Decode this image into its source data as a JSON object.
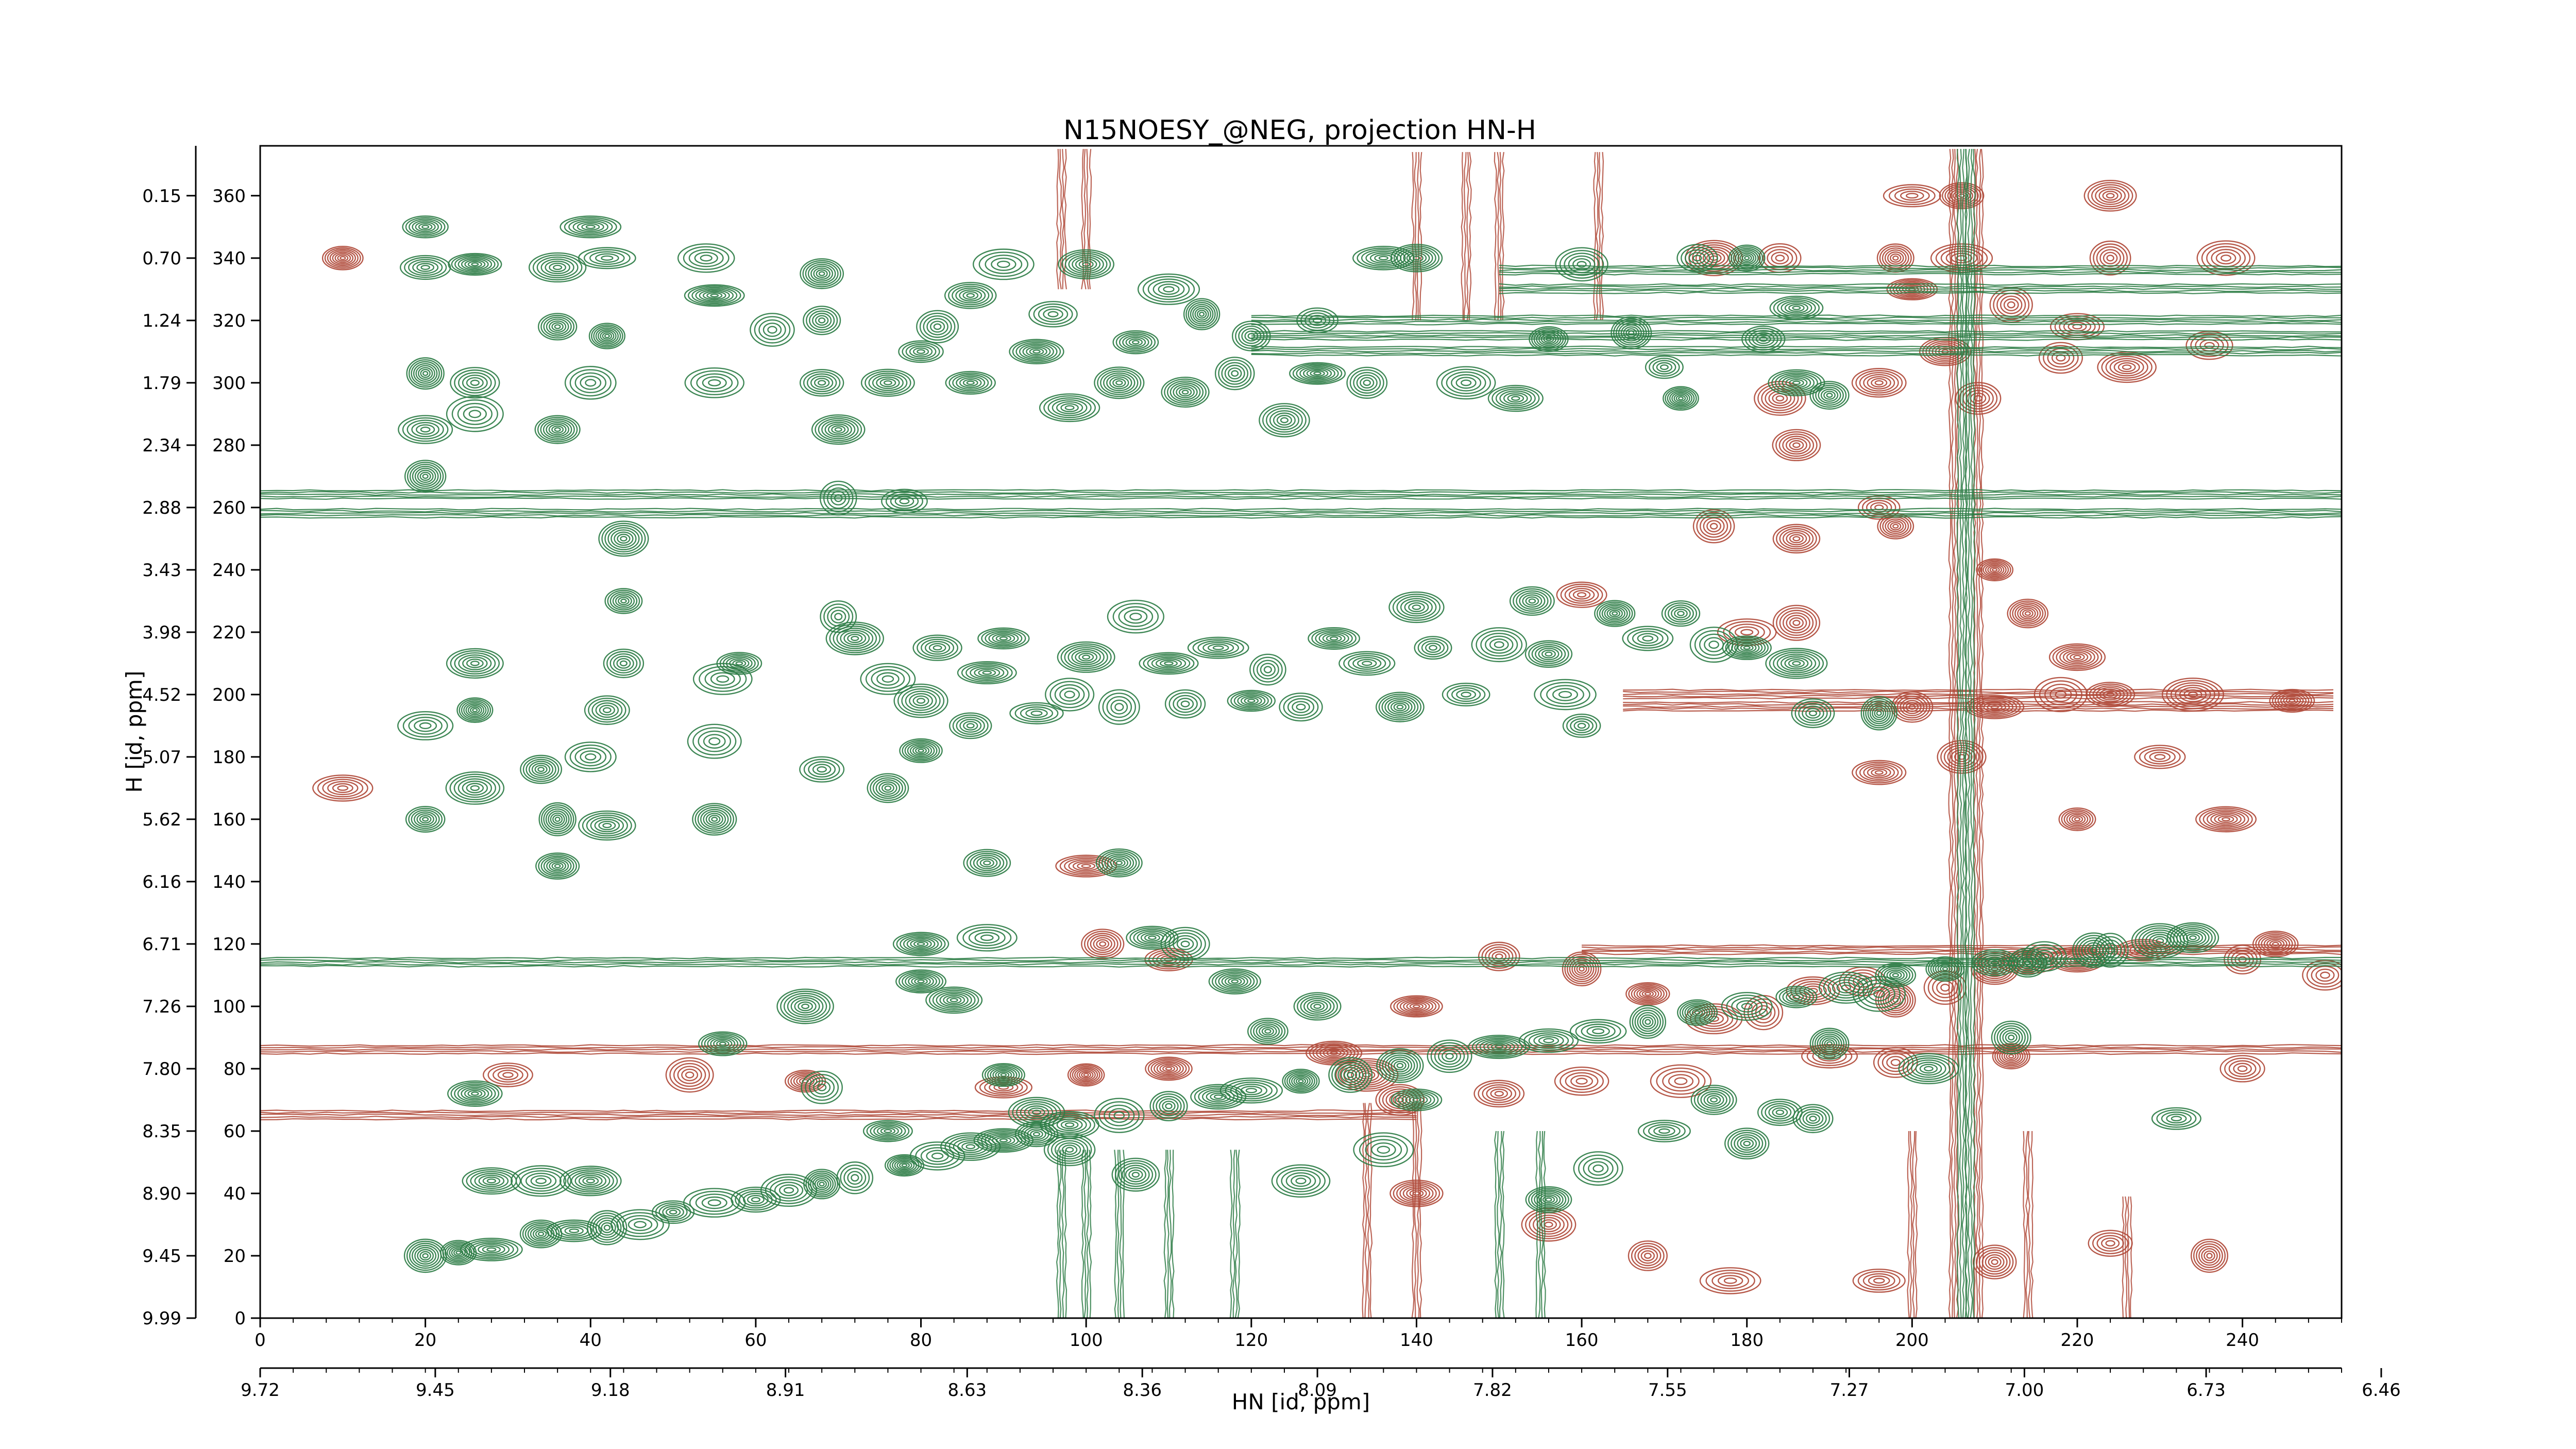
{
  "chart_data": {
    "type": "contour",
    "title": "N15NOESY_@NEG, projection HN-H",
    "xlabel": "HN [id, ppm]",
    "ylabel": "H [id, ppm]",
    "xlim": [
      0,
      252
    ],
    "ylim": [
      0,
      376
    ],
    "grid": false,
    "colors": {
      "positive": "#2e7d46",
      "negative": "#b04a3a"
    },
    "x_points": {
      "ticks": [
        0,
        20,
        40,
        60,
        80,
        100,
        120,
        140,
        160,
        180,
        200,
        220,
        240
      ],
      "labels": [
        "0",
        "20",
        "40",
        "60",
        "80",
        "100",
        "120",
        "140",
        "160",
        "180",
        "200",
        "220",
        "240"
      ]
    },
    "x_ppm": {
      "ticks": [
        0,
        21.2,
        42.4,
        63.6,
        85.6,
        106.8,
        128,
        149.2,
        170.4,
        192.4,
        213.6,
        235.6,
        256.8
      ],
      "labels": [
        "9.72",
        "9.45",
        "9.18",
        "8.91",
        "8.63",
        "8.36",
        "8.09",
        "7.82",
        "7.55",
        "7.27",
        "7.00",
        "6.73",
        "6.46"
      ]
    },
    "y_points": {
      "ticks": [
        0,
        20,
        40,
        60,
        80,
        100,
        120,
        140,
        160,
        180,
        200,
        220,
        240,
        260,
        280,
        300,
        320,
        340,
        360
      ],
      "labels": [
        "0",
        "20",
        "40",
        "60",
        "80",
        "100",
        "120",
        "140",
        "160",
        "180",
        "200",
        "220",
        "240",
        "260",
        "280",
        "300",
        "320",
        "340",
        "360"
      ]
    },
    "y_ppm": {
      "ticks": [
        0,
        20,
        40,
        60,
        80,
        100,
        120,
        140,
        160,
        180,
        200,
        220,
        240,
        260,
        280,
        300,
        320,
        340,
        360
      ],
      "labels": [
        "9.99",
        "9.45",
        "8.90",
        "8.35",
        "7.80",
        "7.26",
        "6.71",
        "6.16",
        "5.62",
        "5.07",
        "4.52",
        "3.98",
        "3.43",
        "2.88",
        "2.34",
        "1.79",
        "1.24",
        "0.70",
        "0.15"
      ]
    },
    "positive_peaks": [
      [
        20,
        20
      ],
      [
        24,
        21
      ],
      [
        28,
        22
      ],
      [
        34,
        27
      ],
      [
        38,
        28
      ],
      [
        42,
        29
      ],
      [
        46,
        30
      ],
      [
        50,
        34
      ],
      [
        55,
        37
      ],
      [
        60,
        38
      ],
      [
        64,
        41
      ],
      [
        68,
        43
      ],
      [
        72,
        45
      ],
      [
        78,
        49
      ],
      [
        82,
        52
      ],
      [
        86,
        55
      ],
      [
        90,
        57
      ],
      [
        94,
        59
      ],
      [
        98,
        62
      ],
      [
        104,
        65
      ],
      [
        110,
        68
      ],
      [
        116,
        71
      ],
      [
        120,
        73
      ],
      [
        126,
        76
      ],
      [
        132,
        78
      ],
      [
        138,
        81
      ],
      [
        144,
        84
      ],
      [
        150,
        87
      ],
      [
        156,
        89
      ],
      [
        162,
        92
      ],
      [
        168,
        95
      ],
      [
        174,
        98
      ],
      [
        180,
        100
      ],
      [
        186,
        103
      ],
      [
        192,
        106
      ],
      [
        198,
        110
      ],
      [
        204,
        112
      ],
      [
        210,
        114
      ],
      [
        216,
        116
      ],
      [
        222,
        118
      ],
      [
        230,
        121
      ],
      [
        20,
        160
      ],
      [
        26,
        170
      ],
      [
        20,
        190
      ],
      [
        26,
        195
      ],
      [
        40,
        180
      ],
      [
        36,
        160
      ],
      [
        42,
        158
      ],
      [
        36,
        145
      ],
      [
        55,
        160
      ],
      [
        55,
        185
      ],
      [
        56,
        205
      ],
      [
        44,
        210
      ],
      [
        42,
        195
      ],
      [
        26,
        210
      ],
      [
        20,
        270
      ],
      [
        20,
        285
      ],
      [
        26,
        290
      ],
      [
        26,
        300
      ],
      [
        20,
        303
      ],
      [
        26,
        338
      ],
      [
        20,
        337
      ],
      [
        36,
        337
      ],
      [
        42,
        340
      ],
      [
        40,
        350
      ],
      [
        20,
        350
      ],
      [
        36,
        318
      ],
      [
        42,
        315
      ],
      [
        40,
        300
      ],
      [
        36,
        285
      ],
      [
        44,
        250
      ],
      [
        44,
        230
      ],
      [
        55,
        328
      ],
      [
        54,
        340
      ],
      [
        55,
        300
      ],
      [
        62,
        317
      ],
      [
        68,
        300
      ],
      [
        68,
        320
      ],
      [
        70,
        285
      ],
      [
        68,
        335
      ],
      [
        70,
        263
      ],
      [
        76,
        300
      ],
      [
        78,
        262
      ],
      [
        80,
        310
      ],
      [
        82,
        318
      ],
      [
        86,
        328
      ],
      [
        86,
        300
      ],
      [
        90,
        338
      ],
      [
        94,
        310
      ],
      [
        96,
        322
      ],
      [
        98,
        292
      ],
      [
        100,
        338
      ],
      [
        104,
        300
      ],
      [
        106,
        313
      ],
      [
        110,
        330
      ],
      [
        112,
        297
      ],
      [
        114,
        322
      ],
      [
        118,
        303
      ],
      [
        120,
        315
      ],
      [
        124,
        288
      ],
      [
        128,
        320
      ],
      [
        128,
        303
      ],
      [
        134,
        300
      ],
      [
        136,
        340
      ],
      [
        140,
        340
      ],
      [
        146,
        300
      ],
      [
        152,
        295
      ],
      [
        156,
        314
      ],
      [
        160,
        338
      ],
      [
        166,
        316
      ],
      [
        170,
        305
      ],
      [
        172,
        295
      ],
      [
        174,
        340
      ],
      [
        180,
        340
      ],
      [
        182,
        314
      ],
      [
        186,
        300
      ],
      [
        190,
        296
      ],
      [
        186,
        324
      ],
      [
        70,
        225
      ],
      [
        72,
        218
      ],
      [
        76,
        205
      ],
      [
        80,
        198
      ],
      [
        82,
        215
      ],
      [
        86,
        190
      ],
      [
        88,
        207
      ],
      [
        90,
        218
      ],
      [
        94,
        194
      ],
      [
        98,
        200
      ],
      [
        100,
        212
      ],
      [
        104,
        196
      ],
      [
        106,
        225
      ],
      [
        110,
        210
      ],
      [
        112,
        197
      ],
      [
        116,
        215
      ],
      [
        120,
        198
      ],
      [
        122,
        208
      ],
      [
        126,
        196
      ],
      [
        130,
        218
      ],
      [
        134,
        210
      ],
      [
        138,
        196
      ],
      [
        140,
        228
      ],
      [
        142,
        215
      ],
      [
        146,
        200
      ],
      [
        150,
        216
      ],
      [
        154,
        230
      ],
      [
        156,
        213
      ],
      [
        158,
        200
      ],
      [
        160,
        190
      ],
      [
        164,
        226
      ],
      [
        168,
        218
      ],
      [
        172,
        226
      ],
      [
        176,
        216
      ],
      [
        180,
        215
      ],
      [
        186,
        210
      ],
      [
        188,
        194
      ],
      [
        196,
        194
      ],
      [
        56,
        88
      ],
      [
        66,
        100
      ],
      [
        68,
        74
      ],
      [
        76,
        60
      ],
      [
        80,
        108
      ],
      [
        80,
        120
      ],
      [
        84,
        102
      ],
      [
        90,
        78
      ],
      [
        94,
        66
      ],
      [
        98,
        54
      ],
      [
        106,
        46
      ],
      [
        108,
        122
      ],
      [
        112,
        120
      ],
      [
        118,
        108
      ],
      [
        122,
        92
      ],
      [
        126,
        44
      ],
      [
        128,
        100
      ],
      [
        136,
        54
      ],
      [
        140,
        70
      ],
      [
        156,
        38
      ],
      [
        162,
        48
      ],
      [
        170,
        60
      ],
      [
        176,
        70
      ],
      [
        180,
        56
      ],
      [
        184,
        66
      ],
      [
        188,
        64
      ],
      [
        190,
        88
      ],
      [
        196,
        104
      ],
      [
        202,
        80
      ],
      [
        212,
        90
      ],
      [
        214,
        114
      ],
      [
        224,
        118
      ],
      [
        232,
        64
      ],
      [
        234,
        122
      ],
      [
        26,
        72
      ],
      [
        28,
        44
      ],
      [
        34,
        44
      ],
      [
        40,
        44
      ],
      [
        88,
        146
      ],
      [
        88,
        122
      ],
      [
        104,
        146
      ],
      [
        76,
        170
      ],
      [
        80,
        182
      ],
      [
        68,
        176
      ],
      [
        34,
        176
      ],
      [
        58,
        210
      ]
    ],
    "negative_peaks": [
      [
        182,
        98
      ],
      [
        188,
        105
      ],
      [
        194,
        108
      ],
      [
        198,
        102
      ],
      [
        204,
        106
      ],
      [
        210,
        112
      ],
      [
        214,
        114
      ],
      [
        220,
        115
      ],
      [
        228,
        118
      ],
      [
        240,
        115
      ],
      [
        176,
        96
      ],
      [
        168,
        104
      ],
      [
        160,
        112
      ],
      [
        150,
        116
      ],
      [
        140,
        100
      ],
      [
        134,
        78
      ],
      [
        138,
        70
      ],
      [
        150,
        72
      ],
      [
        160,
        76
      ],
      [
        172,
        76
      ],
      [
        190,
        84
      ],
      [
        198,
        82
      ],
      [
        212,
        84
      ],
      [
        176,
        340
      ],
      [
        184,
        340
      ],
      [
        198,
        340
      ],
      [
        206,
        340
      ],
      [
        224,
        340
      ],
      [
        200,
        330
      ],
      [
        212,
        325
      ],
      [
        220,
        318
      ],
      [
        226,
        305
      ],
      [
        208,
        295
      ],
      [
        204,
        310
      ],
      [
        196,
        300
      ],
      [
        184,
        295
      ],
      [
        186,
        280
      ],
      [
        196,
        260
      ],
      [
        198,
        254
      ],
      [
        186,
        250
      ],
      [
        176,
        254
      ],
      [
        180,
        220
      ],
      [
        186,
        223
      ],
      [
        218,
        200
      ],
      [
        224,
        200
      ],
      [
        234,
        200
      ],
      [
        246,
        198
      ],
      [
        210,
        196
      ],
      [
        200,
        196
      ],
      [
        206,
        180
      ],
      [
        160,
        232
      ],
      [
        100,
        145
      ],
      [
        102,
        120
      ],
      [
        110,
        115
      ],
      [
        130,
        85
      ],
      [
        110,
        80
      ],
      [
        100,
        78
      ],
      [
        90,
        74
      ],
      [
        66,
        76
      ],
      [
        52,
        78
      ],
      [
        30,
        78
      ],
      [
        10,
        170
      ],
      [
        10,
        340
      ],
      [
        200,
        360
      ],
      [
        206,
        360
      ],
      [
        224,
        360
      ],
      [
        218,
        308
      ],
      [
        236,
        312
      ],
      [
        238,
        340
      ],
      [
        210,
        240
      ],
      [
        214,
        226
      ],
      [
        220,
        212
      ],
      [
        230,
        180
      ],
      [
        238,
        160
      ],
      [
        196,
        175
      ],
      [
        220,
        160
      ],
      [
        240,
        80
      ],
      [
        244,
        120
      ],
      [
        250,
        110
      ],
      [
        140,
        40
      ],
      [
        156,
        30
      ],
      [
        168,
        20
      ],
      [
        178,
        12
      ],
      [
        196,
        12
      ],
      [
        210,
        18
      ],
      [
        224,
        24
      ],
      [
        236,
        20
      ]
    ],
    "positive_ridges_h": [
      {
        "y": 264,
        "x0": 0,
        "x1": 252
      },
      {
        "y": 258,
        "x0": 0,
        "x1": 252
      },
      {
        "y": 114,
        "x0": 0,
        "x1": 252
      },
      {
        "y": 336,
        "x0": 150,
        "x1": 252
      },
      {
        "y": 330,
        "x0": 150,
        "x1": 252
      },
      {
        "y": 320,
        "x0": 120,
        "x1": 252
      },
      {
        "y": 315,
        "x0": 120,
        "x1": 252
      },
      {
        "y": 310,
        "x0": 120,
        "x1": 252
      }
    ],
    "negative_ridges_h": [
      {
        "y": 86,
        "x0": 0,
        "x1": 252
      },
      {
        "y": 65,
        "x0": 0,
        "x1": 140
      },
      {
        "y": 200,
        "x0": 165,
        "x1": 252
      },
      {
        "y": 196,
        "x0": 165,
        "x1": 252
      },
      {
        "y": 118,
        "x0": 160,
        "x1": 252
      }
    ],
    "positive_ridges_v": [
      {
        "x": 97,
        "y0": 0,
        "y1": 55
      },
      {
        "x": 100,
        "y0": 0,
        "y1": 55
      },
      {
        "x": 104,
        "y0": 0,
        "y1": 55
      },
      {
        "x": 110,
        "y0": 0,
        "y1": 55
      },
      {
        "x": 118,
        "y0": 0,
        "y1": 55
      },
      {
        "x": 150,
        "y0": 0,
        "y1": 60
      },
      {
        "x": 155,
        "y0": 0,
        "y1": 60
      },
      {
        "x": 206,
        "y0": 0,
        "y1": 376
      },
      {
        "x": 207,
        "y0": 0,
        "y1": 376
      }
    ],
    "negative_ridges_v": [
      {
        "x": 97,
        "y0": 330,
        "y1": 376
      },
      {
        "x": 100,
        "y0": 330,
        "y1": 376
      },
      {
        "x": 140,
        "y0": 320,
        "y1": 376
      },
      {
        "x": 146,
        "y0": 320,
        "y1": 376
      },
      {
        "x": 150,
        "y0": 320,
        "y1": 376
      },
      {
        "x": 162,
        "y0": 320,
        "y1": 376
      },
      {
        "x": 205,
        "y0": 0,
        "y1": 376
      },
      {
        "x": 208,
        "y0": 0,
        "y1": 376
      },
      {
        "x": 134,
        "y0": 0,
        "y1": 70
      },
      {
        "x": 140,
        "y0": 0,
        "y1": 70
      },
      {
        "x": 200,
        "y0": 0,
        "y1": 60
      },
      {
        "x": 214,
        "y0": 0,
        "y1": 60
      },
      {
        "x": 226,
        "y0": 0,
        "y1": 40
      }
    ]
  }
}
